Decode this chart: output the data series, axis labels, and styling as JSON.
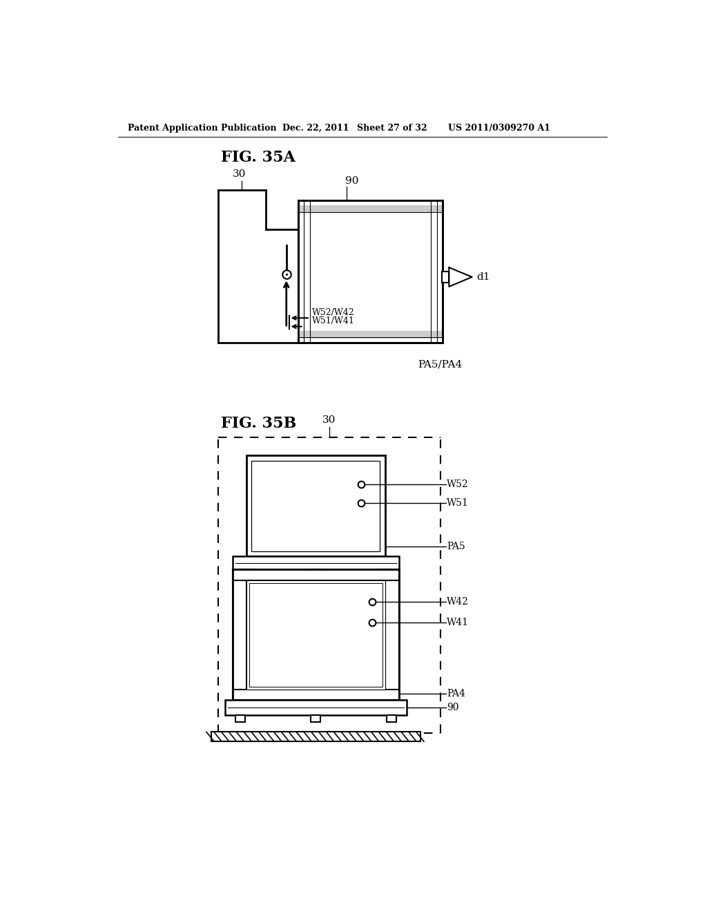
{
  "bg_color": "#ffffff",
  "line_color": "#000000",
  "header_text": "Patent Application Publication",
  "header_date": "Dec. 22, 2011",
  "header_sheet": "Sheet 27 of 32",
  "header_patent": "US 2011/0309270 A1",
  "fig_35a_title": "FIG. 35A",
  "fig_35b_title": "FIG. 35B",
  "label_30_a": "30",
  "label_90_a": "90",
  "label_d1": "d1",
  "label_w52w42": "W52/W42",
  "label_w51w41": "W51/W41",
  "label_pa5pa4": "PA5/PA4",
  "label_30_b": "30",
  "label_w52_b": "W52",
  "label_w51_b": "W51",
  "label_pa5_b": "PA5",
  "label_w42_b": "W42",
  "label_w41_b": "W41",
  "label_pa4_b": "PA4",
  "label_90_b": "90"
}
